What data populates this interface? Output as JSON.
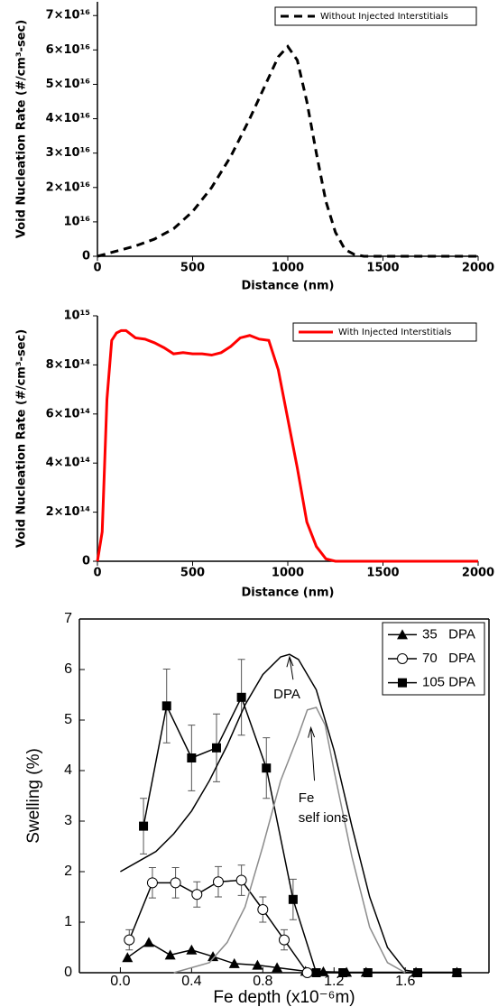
{
  "chart_data": [
    {
      "type": "line",
      "ylabel": "Void Nucleation Rate (#/cm³-sec)",
      "xlabel": "Distance (nm)",
      "xlim": [
        0,
        2000
      ],
      "xticks": [
        0,
        500,
        1000,
        1500,
        2000
      ],
      "ylim": [
        0,
        7.4e+16
      ],
      "yticks": [
        0,
        {
          "value": 1e+16,
          "label": "10¹⁶"
        },
        {
          "value": 2e+16,
          "label": "2×10¹⁶"
        },
        {
          "value": 3e+16,
          "label": "3×10¹⁶"
        },
        {
          "value": 4e+16,
          "label": "4×10¹⁶"
        },
        {
          "value": 5e+16,
          "label": "5×10¹⁶"
        },
        {
          "value": 6e+16,
          "label": "6×10¹⁶"
        },
        {
          "value": 7e+16,
          "label": "7×10¹⁶"
        }
      ],
      "legend": "upper right",
      "series": [
        {
          "name": "Without Injected Interstitials",
          "color": "#000000",
          "dash": true,
          "x": [
            0,
            100,
            200,
            300,
            400,
            500,
            600,
            700,
            800,
            900,
            950,
            1000,
            1050,
            1100,
            1150,
            1200,
            1250,
            1300,
            1350,
            1400,
            1500,
            2000
          ],
          "values": [
            0,
            1500000000000000.0,
            3000000000000000.0,
            5000000000000000.0,
            8000000000000000.0,
            1.3e+16,
            2e+16,
            2.9e+16,
            4e+16,
            5.2e+16,
            5.8e+16,
            6.1e+16,
            5.7e+16,
            4.5e+16,
            3e+16,
            1.6e+16,
            7000000000000000.0,
            2000000000000000.0,
            500000000000000.0,
            0,
            0,
            0
          ]
        }
      ]
    },
    {
      "type": "line",
      "ylabel": "Void Nucleation Rate (#/cm³-sec)",
      "xlabel": "Distance (nm)",
      "xlim": [
        0,
        2000
      ],
      "xticks": [
        0,
        500,
        1000,
        1500,
        2000
      ],
      "ylim": [
        0,
        1000000000000000.0
      ],
      "yticks": [
        0,
        {
          "value": 200000000000000.0,
          "label": "2×10¹⁴"
        },
        {
          "value": 400000000000000.0,
          "label": "4×10¹⁴"
        },
        {
          "value": 600000000000000.0,
          "label": "6×10¹⁴"
        },
        {
          "value": 800000000000000.0,
          "label": "8×10¹⁴"
        },
        {
          "value": 1000000000000000.0,
          "label": "10¹⁵"
        }
      ],
      "legend": "upper right",
      "series": [
        {
          "name": "With Injected Interstitials",
          "color": "#ff0000",
          "dash": false,
          "x": [
            0,
            25,
            50,
            75,
            100,
            125,
            150,
            200,
            250,
            300,
            350,
            400,
            450,
            500,
            550,
            600,
            650,
            700,
            750,
            800,
            850,
            900,
            950,
            1000,
            1050,
            1100,
            1150,
            1200,
            1250,
            2000
          ],
          "values": [
            0,
            120000000000000.0,
            660000000000000.0,
            900000000000000.0,
            930000000000000.0,
            940000000000000.0,
            940000000000000.0,
            910000000000000.0,
            905000000000000.0,
            890000000000000.0,
            870000000000000.0,
            845000000000000.0,
            850000000000000.0,
            845000000000000.0,
            845000000000000.0,
            840000000000000.0,
            850000000000000.0,
            875000000000000.0,
            910000000000000.0,
            920000000000000.0,
            905000000000000.0,
            900000000000000.0,
            780000000000000.0,
            580000000000000.0,
            380000000000000.0,
            160000000000000.0,
            60000000000000.0,
            10000000000000.0,
            0,
            0
          ]
        }
      ]
    },
    {
      "type": "scatter",
      "ylabel": "Swelling (%)",
      "xlabel": "Fe depth (x10⁻⁶m)",
      "xlim": [
        -0.23,
        2.07
      ],
      "xticks": [
        {
          "value": 0,
          "label": "0.0"
        },
        0.4,
        0.8,
        1.2,
        1.6
      ],
      "ylim": [
        0,
        7
      ],
      "yticks": [
        0,
        1,
        2,
        3,
        4,
        5,
        6,
        7
      ],
      "legend": "upper right",
      "annotations": [
        "DPA",
        "Fe",
        "self ions"
      ],
      "series": [
        {
          "name": "35   DPA",
          "color": "#000000",
          "marker": "triangle",
          "x": [
            0.04,
            0.16,
            0.28,
            0.4,
            0.52,
            0.64,
            0.77,
            0.88,
            1.04,
            1.14,
            1.27,
            1.38,
            1.66,
            1.89
          ],
          "values": [
            0.3,
            0.6,
            0.35,
            0.45,
            0.32,
            0.18,
            0.15,
            0.1,
            0.03,
            0.02,
            0.01,
            0.01,
            0.01,
            0.01
          ]
        },
        {
          "name": "70   DPA",
          "color": "#000000",
          "marker": "circle-open",
          "x": [
            0.05,
            0.18,
            0.31,
            0.43,
            0.55,
            0.68,
            0.8,
            0.92,
            1.05
          ],
          "values": [
            0.65,
            1.78,
            1.78,
            1.55,
            1.8,
            1.83,
            1.25,
            0.65,
            0
          ],
          "errors": [
            0.2,
            0.3,
            0.3,
            0.25,
            0.3,
            0.3,
            0.25,
            0.2,
            null
          ]
        },
        {
          "name": "105 DPA",
          "color": "#000000",
          "marker": "square",
          "x": [
            0.13,
            0.26,
            0.4,
            0.54,
            0.68,
            0.82,
            0.97,
            1.1,
            1.25,
            1.39,
            1.67,
            1.89
          ],
          "values": [
            2.9,
            5.28,
            4.25,
            4.45,
            5.45,
            4.05,
            1.45,
            0,
            0,
            0,
            0,
            0
          ],
          "errors": [
            0.55,
            0.73,
            0.65,
            0.67,
            0.75,
            0.6,
            0.4,
            null,
            null,
            null,
            null,
            null
          ]
        },
        {
          "color": "#000000",
          "marker": "none",
          "x": [
            0,
            0.1,
            0.2,
            0.3,
            0.4,
            0.5,
            0.6,
            0.7,
            0.8,
            0.9,
            0.95,
            1.0,
            1.1,
            1.2,
            1.3,
            1.4,
            1.5,
            1.6,
            1.7
          ],
          "values": [
            2.0,
            2.2,
            2.4,
            2.75,
            3.2,
            3.8,
            4.5,
            5.3,
            5.9,
            6.25,
            6.3,
            6.2,
            5.6,
            4.4,
            2.9,
            1.5,
            0.5,
            0.05,
            0
          ]
        },
        {
          "color": "#8c8c8c",
          "marker": "none",
          "x": [
            0.3,
            0.5,
            0.6,
            0.7,
            0.8,
            0.9,
            1.0,
            1.05,
            1.1,
            1.15,
            1.2,
            1.3,
            1.4,
            1.5,
            1.6
          ],
          "values": [
            0,
            0.2,
            0.6,
            1.3,
            2.5,
            3.8,
            4.7,
            5.2,
            5.25,
            4.9,
            4.0,
            2.3,
            0.9,
            0.2,
            0
          ]
        }
      ]
    }
  ]
}
